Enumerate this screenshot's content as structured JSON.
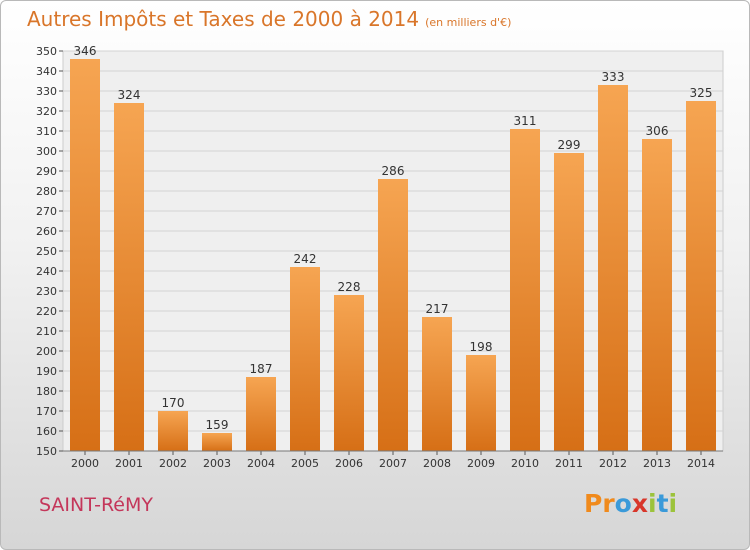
{
  "title": "Autres Impôts et Taxes de 2000 à 2014",
  "unit": "(en milliers d'€)",
  "commune": "SAINT-RéMY",
  "logo": {
    "letters": [
      "P",
      "r",
      "o",
      "x",
      "i",
      "t",
      "i"
    ],
    "colors": [
      "#f08a1c",
      "#f08a1c",
      "#3a9ad9",
      "#d8362a",
      "#9cc33b",
      "#3a9ad9",
      "#9cc33b"
    ]
  },
  "chart_data": {
    "type": "bar",
    "categories": [
      "2000",
      "2001",
      "2002",
      "2003",
      "2004",
      "2005",
      "2006",
      "2007",
      "2008",
      "2009",
      "2010",
      "2011",
      "2012",
      "2013",
      "2014"
    ],
    "values": [
      346,
      324,
      170,
      159,
      187,
      242,
      228,
      286,
      217,
      198,
      311,
      299,
      333,
      306,
      325
    ],
    "ylim": [
      150,
      350
    ],
    "ytick_step": 10,
    "grid": true,
    "bar_color": "#f0922f"
  }
}
